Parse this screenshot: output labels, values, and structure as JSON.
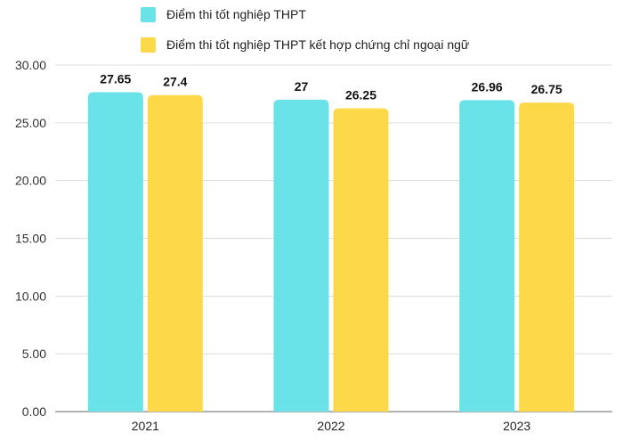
{
  "chart_data": {
    "type": "bar",
    "categories": [
      "2021",
      "2022",
      "2023"
    ],
    "series": [
      {
        "name": "Điểm thi tốt nghiệp THPT",
        "values": [
          27.65,
          27,
          26.96
        ],
        "labels": [
          "27.65",
          "27",
          "26.96"
        ],
        "color": "#6ae3e8"
      },
      {
        "name": "Điểm thi tốt nghiệp THPT kết hợp chứng chỉ ngoại ngữ",
        "values": [
          27.4,
          26.25,
          26.75
        ],
        "labels": [
          "27.4",
          "26.25",
          "26.75"
        ],
        "color": "#fdd94a"
      }
    ],
    "yticks": [
      "0.00",
      "5.00",
      "10.00",
      "15.00",
      "20.00",
      "25.00",
      "30.00"
    ],
    "ylim": [
      0,
      30
    ],
    "grid": true,
    "legend": "top"
  }
}
